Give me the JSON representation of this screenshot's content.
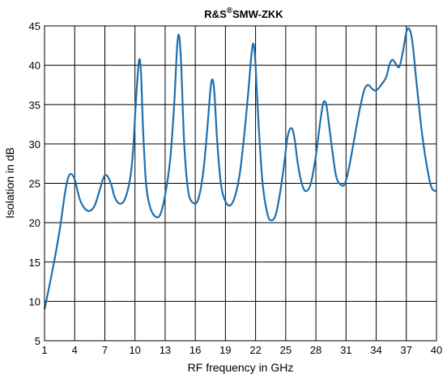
{
  "chart_data": {
    "type": "line",
    "title": "R&S",
    "title_superscript": "®",
    "title_suffix": "SMW-ZKK",
    "xlabel": "RF frequency in GHz",
    "ylabel": "Isolation in dB",
    "xlim": [
      1,
      40
    ],
    "ylim": [
      5,
      45
    ],
    "grid": true,
    "legend": "none",
    "x_tick_labels": [
      "1",
      "4",
      "7",
      "10",
      "13",
      "16",
      "19",
      "22",
      "25",
      "28",
      "31",
      "34",
      "37",
      "40"
    ],
    "y_tick_labels": [
      "5",
      "10",
      "15",
      "20",
      "25",
      "30",
      "35",
      "40",
      "45"
    ],
    "series": [
      {
        "color": "#1f6fad",
        "x": [
          1.0,
          1.8,
          2.5,
          3.0,
          3.3,
          3.6,
          4.0,
          4.5,
          5.0,
          5.5,
          6.0,
          6.5,
          6.9,
          7.2,
          7.6,
          8.0,
          8.5,
          9.0,
          9.5,
          9.8,
          10.1,
          10.4,
          10.6,
          10.8,
          11.1,
          11.5,
          12.0,
          12.5,
          13.0,
          13.5,
          13.9,
          14.2,
          14.4,
          14.6,
          14.9,
          15.3,
          15.8,
          16.3,
          16.8,
          17.2,
          17.5,
          17.7,
          17.9,
          18.2,
          18.6,
          19.2,
          19.8,
          20.4,
          20.9,
          21.3,
          21.6,
          21.8,
          22.0,
          22.3,
          22.7,
          23.2,
          23.6,
          24.0,
          24.4,
          24.8,
          25.2,
          25.6,
          25.9,
          26.2,
          26.6,
          27.0,
          27.5,
          28.0,
          28.4,
          28.7,
          28.9,
          29.1,
          29.5,
          30.0,
          30.5,
          30.9,
          31.3,
          31.8,
          32.3,
          32.8,
          33.2,
          33.6,
          34.0,
          34.5,
          35.0,
          35.3,
          35.6,
          35.9,
          36.3,
          36.7,
          37.0,
          37.3,
          37.6,
          38.0,
          38.5,
          39.0,
          39.5,
          40.0
        ],
        "values": [
          9.0,
          14.0,
          19.0,
          23.5,
          25.5,
          26.2,
          25.5,
          23.0,
          21.8,
          21.5,
          22.2,
          24.2,
          25.8,
          26.0,
          25.0,
          23.2,
          22.4,
          23.0,
          25.5,
          29.0,
          35.5,
          40.6,
          39.0,
          32.0,
          25.0,
          22.0,
          20.8,
          21.0,
          23.5,
          28.0,
          35.0,
          42.5,
          43.7,
          40.0,
          30.0,
          24.0,
          22.5,
          23.0,
          26.5,
          32.0,
          36.8,
          38.2,
          36.5,
          30.0,
          24.5,
          22.3,
          22.8,
          26.0,
          31.5,
          37.0,
          41.5,
          42.7,
          40.0,
          32.5,
          25.0,
          21.0,
          20.3,
          21.0,
          23.5,
          27.0,
          31.0,
          32.0,
          30.5,
          27.5,
          25.0,
          24.0,
          25.0,
          28.5,
          32.5,
          35.0,
          35.4,
          34.5,
          30.5,
          26.0,
          24.8,
          25.0,
          27.0,
          30.5,
          34.0,
          36.8,
          37.5,
          37.0,
          36.8,
          37.5,
          38.5,
          40.0,
          40.7,
          40.3,
          39.8,
          42.0,
          44.2,
          44.6,
          43.0,
          38.0,
          32.0,
          27.5,
          24.5,
          24.0
        ]
      }
    ]
  }
}
